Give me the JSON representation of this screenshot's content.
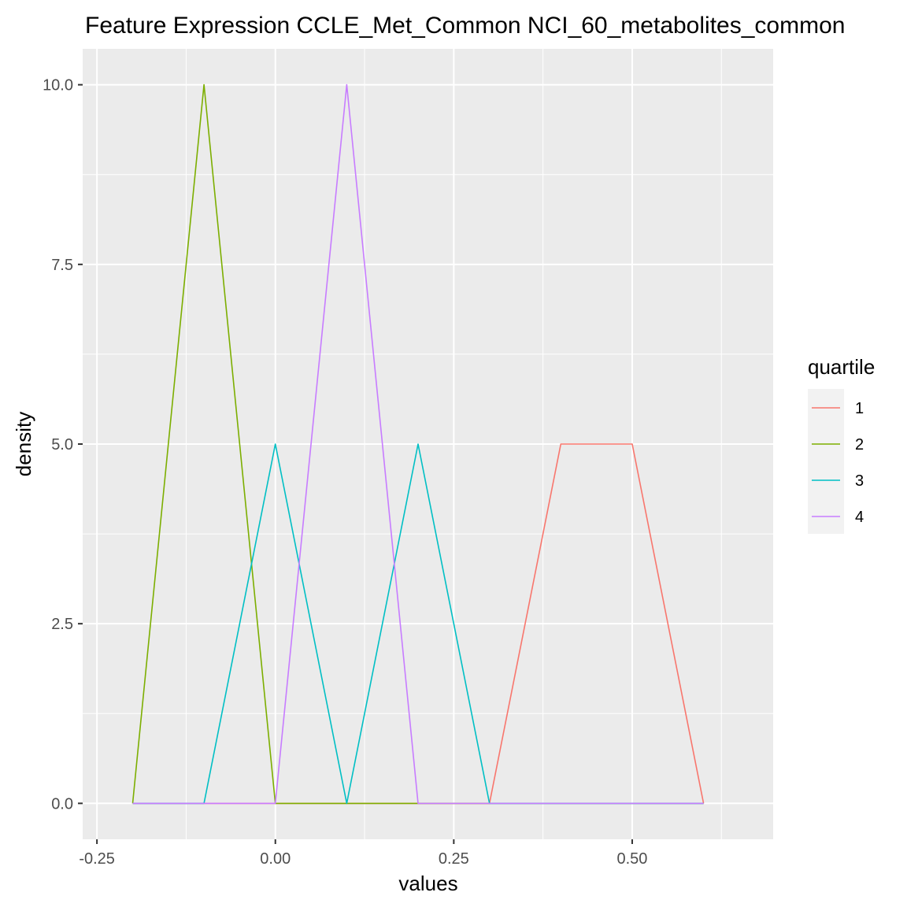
{
  "chart_data": {
    "type": "line",
    "title": "Feature Expression CCLE_Met_Common NCI_60_metabolites_common",
    "xlabel": "values",
    "ylabel": "density",
    "xlim": [
      -0.27,
      0.6975
    ],
    "ylim": [
      -0.5,
      10.5
    ],
    "x_ticks": [
      -0.25,
      0.0,
      0.25,
      0.5
    ],
    "x_tick_labels": [
      "-0.25",
      "0.00",
      "0.25",
      "0.50"
    ],
    "y_ticks": [
      0.0,
      2.5,
      5.0,
      7.5,
      10.0
    ],
    "y_tick_labels": [
      "0.0",
      "2.5",
      "5.0",
      "7.5",
      "10.0"
    ],
    "grid": true,
    "legend": {
      "title": "quartile",
      "position": "right"
    },
    "series": [
      {
        "name": "1",
        "color": "#F8766D",
        "x": [
          -0.2,
          -0.1,
          0.0,
          0.1,
          0.2,
          0.3,
          0.4,
          0.5,
          0.6
        ],
        "y": [
          0,
          0,
          0,
          0,
          0,
          0,
          5,
          5,
          0
        ]
      },
      {
        "name": "2",
        "color": "#7CAE00",
        "x": [
          -0.2,
          -0.1,
          0.0,
          0.1,
          0.2,
          0.3,
          0.4,
          0.5,
          0.6
        ],
        "y": [
          0,
          10,
          0,
          0,
          0,
          0,
          0,
          0,
          0
        ]
      },
      {
        "name": "3",
        "color": "#00BFC4",
        "x": [
          -0.2,
          -0.1,
          0.0,
          0.1,
          0.2,
          0.3,
          0.4,
          0.5,
          0.6
        ],
        "y": [
          0,
          0,
          5,
          0,
          5,
          0,
          0,
          0,
          0
        ]
      },
      {
        "name": "4",
        "color": "#C77CFF",
        "x": [
          -0.2,
          -0.1,
          0.0,
          0.1,
          0.2,
          0.3,
          0.4,
          0.5,
          0.6
        ],
        "y": [
          0,
          0,
          0,
          10,
          0,
          0,
          0,
          0,
          0
        ]
      }
    ]
  }
}
